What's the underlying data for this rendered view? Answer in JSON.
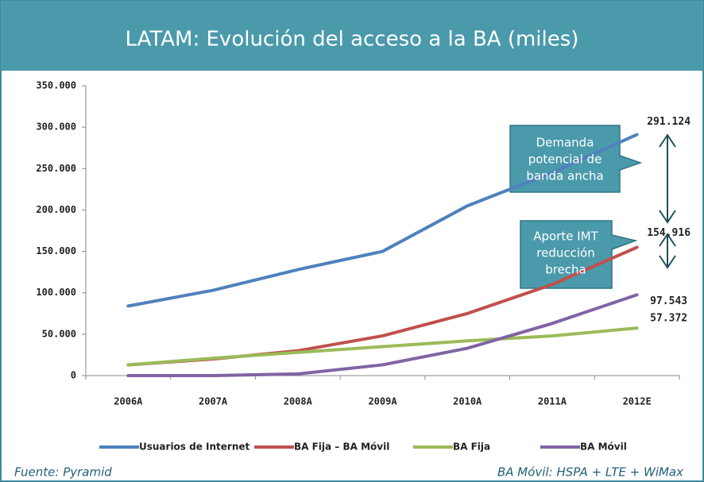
{
  "chart_data": {
    "type": "line",
    "title": "LATAM: Evolución del acceso a la BA (miles)",
    "categories": [
      "2006A",
      "2007A",
      "2008A",
      "2009A",
      "2010A",
      "2011A",
      "2012E"
    ],
    "series": [
      {
        "name": "Usuarios de Internet",
        "color": "#4f81bd",
        "values": [
          84000,
          103000,
          128000,
          150000,
          205000,
          245000,
          291124
        ],
        "value_labels": [
          null,
          null,
          null,
          null,
          null,
          null,
          "291.124"
        ]
      },
      {
        "name": "BA Fija – BA Móvil",
        "color": "#c0504d",
        "values": [
          13000,
          20000,
          30000,
          48000,
          75000,
          110000,
          154916
        ],
        "value_labels": [
          null,
          null,
          null,
          null,
          null,
          null,
          "154.916"
        ]
      },
      {
        "name": "BA Fija",
        "color": "#9bbb59",
        "values": [
          13000,
          21000,
          28000,
          35000,
          42000,
          48000,
          57372
        ],
        "value_labels": [
          null,
          null,
          null,
          null,
          null,
          null,
          "57.372"
        ]
      },
      {
        "name": "BA Móvil",
        "color": "#8064a2",
        "values": [
          0,
          0,
          2000,
          13000,
          33000,
          63000,
          97543
        ],
        "value_labels": [
          null,
          null,
          null,
          null,
          null,
          null,
          "97.543"
        ]
      }
    ],
    "ylim": [
      0,
      350000
    ],
    "yticks": [
      0,
      {
        "value": 50000,
        "label": "50.000"
      },
      {
        "value": 100000,
        "label": "100.000"
      },
      {
        "value": 150000,
        "label": "150.000"
      },
      {
        "value": 200000,
        "label": "200.000"
      },
      {
        "value": 250000,
        "label": "250.000"
      },
      {
        "value": 300000,
        "label": "300.000"
      },
      {
        "value": 350000,
        "label": "350.000"
      }
    ],
    "grid": false,
    "legend": "bottom",
    "annotations": [
      [
        "Demanda",
        "potencial de",
        "banda ancha"
      ],
      [
        "Aporte IMT",
        "reducción",
        "brecha"
      ]
    ],
    "notes": [
      "Fuente: Pyramid",
      "BA Móvil: HSPA + LTE + WiMax"
    ]
  }
}
